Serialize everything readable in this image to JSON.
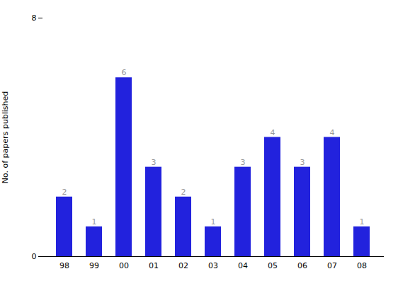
{
  "chart_data": {
    "type": "bar",
    "categories": [
      "98",
      "99",
      "00",
      "01",
      "02",
      "03",
      "04",
      "05",
      "06",
      "07",
      "08"
    ],
    "values": [
      2,
      1,
      6,
      3,
      2,
      1,
      3,
      4,
      3,
      4,
      1
    ],
    "color": "#2222dd",
    "ylabel": "No. of papers published",
    "ylim": [
      0,
      8
    ],
    "yticks": [
      0,
      8
    ],
    "grid": false,
    "data_labels": true
  }
}
